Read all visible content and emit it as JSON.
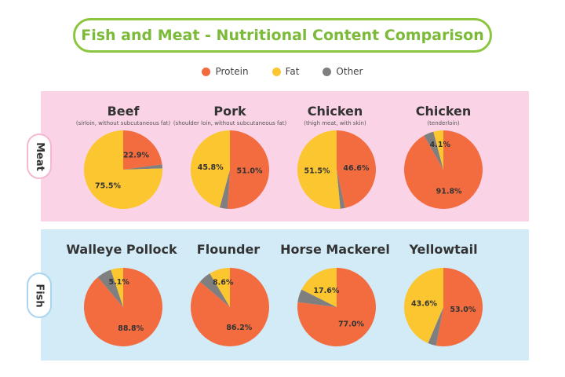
{
  "chart_data": {
    "type": "pie",
    "title": "Fish and Meat - Nutritional Content Comparison",
    "legend": [
      {
        "label": "Protein",
        "color": "#f26c40"
      },
      {
        "label": "Fat",
        "color": "#fbc62f"
      },
      {
        "label": "Other",
        "color": "#7f7f7f"
      }
    ],
    "groups": [
      {
        "label": "Meat",
        "charts": [
          {
            "name": "Beef",
            "subtitle": "(sirloin, without subcutaneous fat)",
            "protein": 22.9,
            "fat": 75.5,
            "protein_label": "22.9%",
            "fat_label": "75.5%"
          },
          {
            "name": "Pork",
            "subtitle": "(shoulder loin, without subcutaneous fat)",
            "protein": 51.0,
            "fat": 45.8,
            "protein_label": "51.0%",
            "fat_label": "45.8%"
          },
          {
            "name": "Chicken",
            "subtitle": "(thigh meat, with skin)",
            "protein": 46.6,
            "fat": 51.5,
            "protein_label": "46.6%",
            "fat_label": "51.5%"
          },
          {
            "name": "Chicken",
            "subtitle": "(tenderloin)",
            "protein": 91.8,
            "fat": 4.1,
            "protein_label": "91.8%",
            "fat_label": "4.1%"
          }
        ]
      },
      {
        "label": "Fish",
        "charts": [
          {
            "name": "Walleye Pollock",
            "subtitle": "",
            "protein": 88.8,
            "fat": 5.1,
            "protein_label": "88.8%",
            "fat_label": "5.1%"
          },
          {
            "name": "Flounder",
            "subtitle": "",
            "protein": 86.2,
            "fat": 8.6,
            "protein_label": "86.2%",
            "fat_label": "8.6%"
          },
          {
            "name": "Horse Mackerel",
            "subtitle": "",
            "protein": 77.0,
            "fat": 17.6,
            "protein_label": "77.0%",
            "fat_label": "17.6%"
          },
          {
            "name": "Yellowtail",
            "subtitle": "",
            "protein": 53.0,
            "fat": 43.6,
            "protein_label": "53.0%",
            "fat_label": "43.6%"
          }
        ]
      }
    ]
  }
}
